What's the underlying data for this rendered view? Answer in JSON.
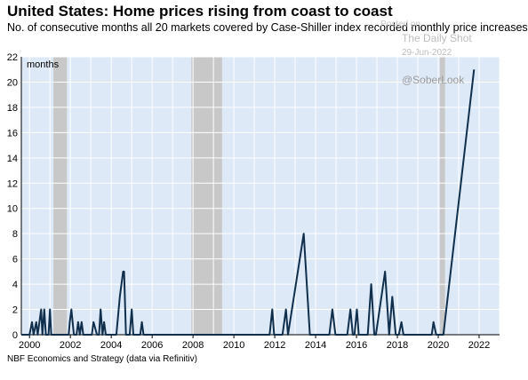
{
  "header": {
    "title": "United States: Home prices rising from coast to coast",
    "subtitle": "No. of consecutive months all 20 markets covered by Case-Shiller index recorded monthly price increases"
  },
  "footer": {
    "source": "NBF Economics and Strategy (data via Refinitiv)"
  },
  "watermark": {
    "posted": "Posted on",
    "site": "The Daily Shot",
    "date": "29-Jun-2022",
    "handle": "@SoberLook"
  },
  "colors": {
    "plot_bg": "#dde9f7",
    "recession": "#c8c8c8",
    "line": "#0f2f4d",
    "grid": "#ffffff"
  },
  "chart_data": {
    "type": "line",
    "title": "United States: Home prices rising from coast to coast",
    "subtitle": "No. of consecutive months all 20 markets covered by Case-Shiller index recorded monthly price increases",
    "xlabel": "",
    "ylabel": "months",
    "xlim": [
      1999.6,
      2023.0
    ],
    "ylim": [
      0,
      22
    ],
    "xticks": [
      2000,
      2002,
      2004,
      2006,
      2008,
      2010,
      2012,
      2014,
      2016,
      2018,
      2020,
      2022
    ],
    "yticks": [
      0,
      2,
      4,
      6,
      8,
      10,
      12,
      14,
      16,
      18,
      20,
      22
    ],
    "grid": true,
    "recession_shading": [
      [
        2001.17,
        2001.83
      ],
      [
        2007.92,
        2009.42
      ],
      [
        2020.08,
        2020.33
      ]
    ],
    "series": [
      {
        "name": "",
        "x": [
          1999.6,
          2000.0,
          2000.12,
          2000.2,
          2000.33,
          2000.4,
          2000.57,
          2000.63,
          2000.72,
          2000.8,
          2000.93,
          2001.0,
          2001.06,
          2001.1,
          2001.75,
          2001.92,
          2001.97,
          2002.05,
          2002.17,
          2002.3,
          2002.38,
          2002.46,
          2002.55,
          2002.63,
          2002.75,
          2003.05,
          2003.13,
          2003.3,
          2003.4,
          2003.48,
          2003.57,
          2003.65,
          2003.73,
          2003.82,
          2004.08,
          2004.25,
          2004.42,
          2004.58,
          2004.63,
          2004.72,
          2004.9,
          2005.0,
          2005.08,
          2005.42,
          2005.5,
          2005.58,
          2011.75,
          2011.88,
          2011.97,
          2012.38,
          2012.55,
          2012.65,
          2013.42,
          2013.72,
          2014.67,
          2014.82,
          2014.97,
          2015.55,
          2015.7,
          2015.82,
          2015.9,
          2016.02,
          2016.11,
          2016.13,
          2016.55,
          2016.72,
          2016.87,
          2016.95,
          2017.4,
          2017.6,
          2017.75,
          2017.92,
          2018.07,
          2018.2,
          2018.3,
          2018.38,
          2018.47,
          2019.68,
          2019.77,
          2019.9,
          2020.25,
          2021.75
        ],
        "values": [
          0,
          0,
          1,
          0,
          1,
          0,
          2,
          0,
          2,
          0,
          0,
          2,
          0,
          0,
          0,
          0,
          1,
          2,
          0,
          0,
          1,
          0,
          1,
          0,
          0,
          0,
          1,
          0,
          0,
          2,
          0,
          1,
          0,
          0,
          0,
          0,
          3,
          5,
          5,
          0,
          0,
          2,
          0,
          0,
          1,
          0,
          0,
          2,
          0,
          0,
          2,
          0,
          8,
          0,
          0,
          2,
          0,
          0,
          2,
          0,
          0,
          2,
          0,
          0,
          0,
          4,
          0,
          0,
          5,
          0,
          3,
          0,
          0,
          1,
          0,
          0,
          0,
          0,
          1,
          0,
          0,
          21
        ]
      }
    ]
  }
}
